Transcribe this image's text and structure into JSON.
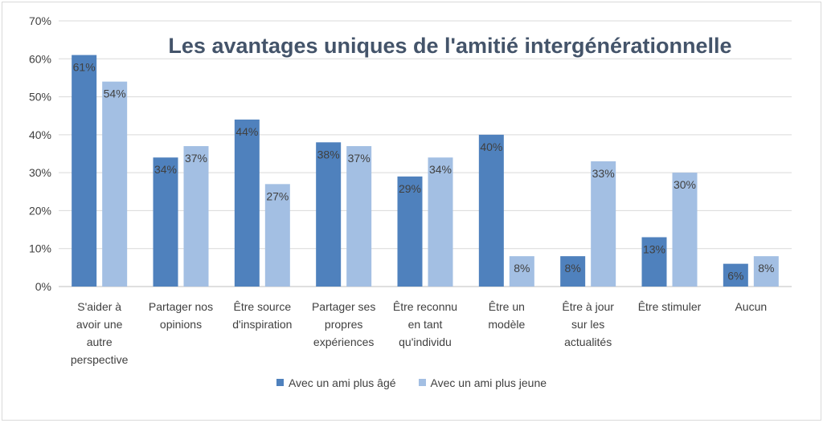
{
  "chart_data": {
    "type": "bar",
    "title": "Les avantages uniques de l'amitié intergénérationnelle",
    "categories": [
      [
        "S'aider à",
        "avoir une",
        "autre",
        "perspective"
      ],
      [
        "Partager nos",
        "opinions"
      ],
      [
        "Être source",
        "d'inspiration"
      ],
      [
        "Partager ses",
        "propres",
        "expériences"
      ],
      [
        "Être reconnu",
        "en tant",
        "qu'individu"
      ],
      [
        "Être un",
        "modèle"
      ],
      [
        "Être à jour",
        "sur les",
        "actualités"
      ],
      [
        "Être stimuler"
      ],
      [
        "Aucun"
      ]
    ],
    "series": [
      {
        "name": "Avec un ami plus âgé",
        "color": "#4f81bd",
        "values": [
          61,
          34,
          44,
          38,
          29,
          40,
          8,
          13,
          6
        ]
      },
      {
        "name": "Avec un ami plus jeune",
        "color": "#a3bfe3",
        "values": [
          54,
          37,
          27,
          37,
          34,
          8,
          33,
          30,
          8
        ]
      }
    ],
    "ylim": [
      0,
      70
    ],
    "yticks": [
      "0%",
      "10%",
      "20%",
      "30%",
      "40%",
      "50%",
      "60%",
      "70%"
    ],
    "value_suffix": "%",
    "grid": true,
    "legend": "bottom"
  }
}
